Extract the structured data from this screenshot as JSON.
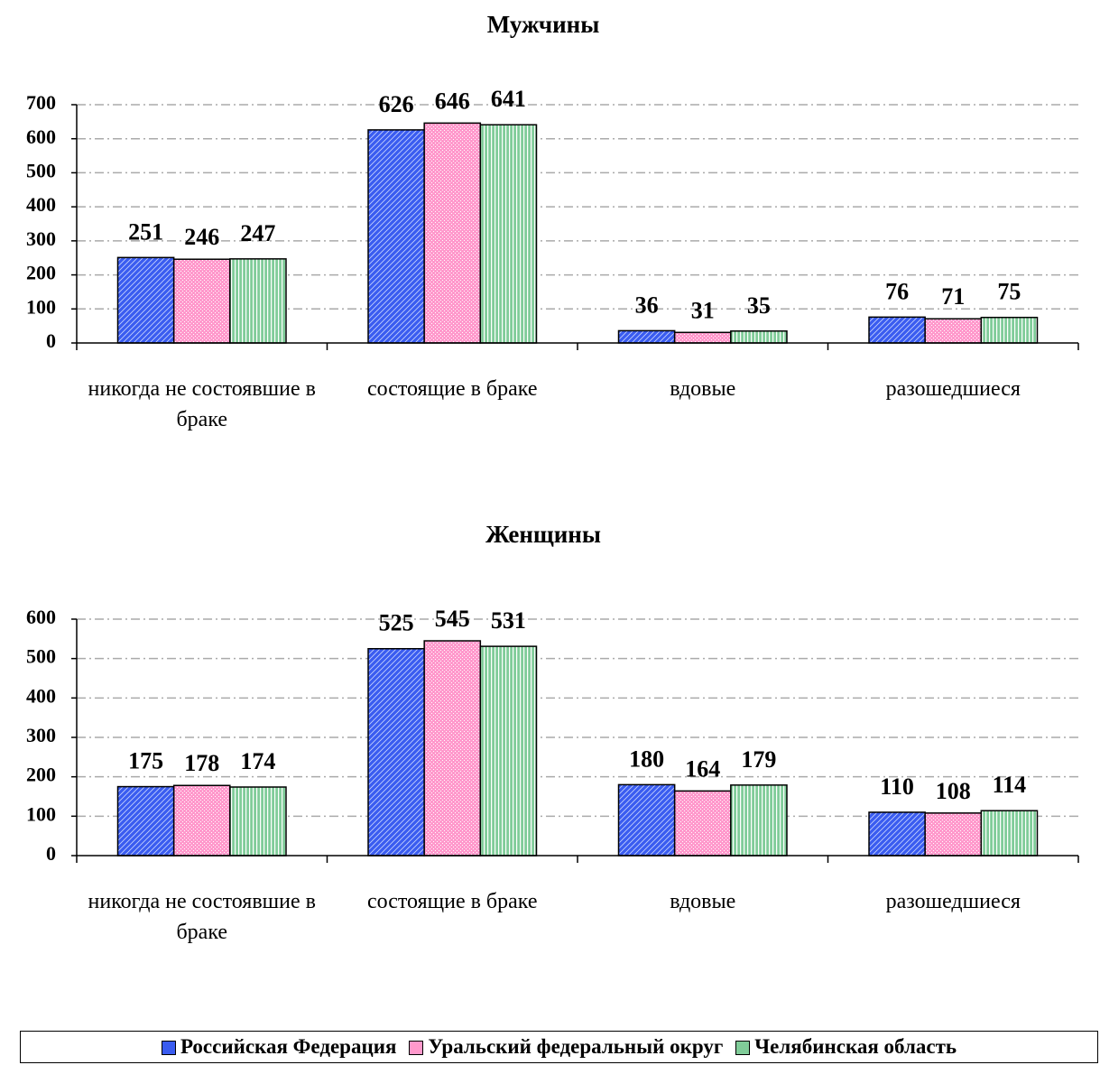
{
  "chart_data": [
    {
      "type": "bar",
      "title": "Мужчины",
      "categories": [
        "никогда не состоявшие в браке",
        "состоящие в браке",
        "вдовые",
        "разошедшиеся"
      ],
      "series": [
        {
          "name": "Российская Федерация",
          "color": "#3a5cf0",
          "values": [
            251,
            626,
            36,
            76
          ]
        },
        {
          "name": "Уральский федеральный округ",
          "color": "#ff99cc",
          "values": [
            246,
            646,
            31,
            71
          ]
        },
        {
          "name": "Челябинская область",
          "color": "#80cc99",
          "values": [
            247,
            641,
            35,
            75
          ]
        }
      ],
      "ylim": [
        0,
        700
      ],
      "yticks": [
        0,
        100,
        200,
        300,
        400,
        500,
        600,
        700
      ],
      "grid": true
    },
    {
      "type": "bar",
      "title": "Женщины",
      "categories": [
        "никогда не состоявшие в браке",
        "состоящие в браке",
        "вдовые",
        "разошедшиеся"
      ],
      "series": [
        {
          "name": "Российская Федерация",
          "color": "#3a5cf0",
          "values": [
            175,
            525,
            180,
            110
          ]
        },
        {
          "name": "Уральский федеральный округ",
          "color": "#ff99cc",
          "values": [
            178,
            545,
            164,
            108
          ]
        },
        {
          "name": "Челябинская область",
          "color": "#80cc99",
          "values": [
            174,
            531,
            179,
            114
          ]
        }
      ],
      "ylim": [
        0,
        600
      ],
      "yticks": [
        0,
        100,
        200,
        300,
        400,
        500,
        600
      ],
      "grid": true
    }
  ]
}
